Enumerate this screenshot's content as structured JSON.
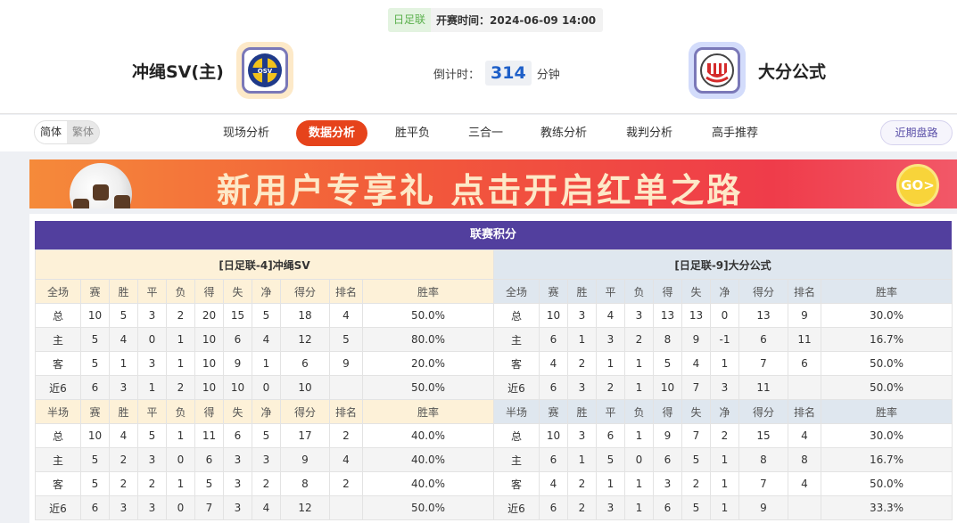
{
  "match": {
    "league": "日足联",
    "kickoff": "开赛时间：2024-06-09 14:00",
    "countdown_label": "倒计时：",
    "countdown_value": "314",
    "countdown_unit": "分钟"
  },
  "home": {
    "name": "冲绳SV(主)",
    "logo_text": "OSV"
  },
  "away": {
    "name": "大分公式"
  },
  "nav": {
    "lang": [
      "简体",
      "繁体"
    ],
    "tabs": [
      "现场分析",
      "数据分析",
      "胜平负",
      "三合一",
      "教练分析",
      "裁判分析",
      "高手推荐"
    ],
    "active_tab": "数据分析",
    "recent": "近期盘路"
  },
  "banner": {
    "text": "新用户专享礼  点击开启红单之路",
    "go": "GO>"
  },
  "colors": {
    "accent": "#e6431b",
    "title_bar": "#523f9e",
    "home_row": "#e00000",
    "away_row": "#1a33cc"
  },
  "standings": {
    "title": "联赛积分",
    "columns_full": [
      "全场",
      "赛",
      "胜",
      "平",
      "负",
      "得",
      "失",
      "净",
      "得分",
      "排名",
      "胜率"
    ],
    "columns_half": [
      "半场",
      "赛",
      "胜",
      "平",
      "负",
      "得",
      "失",
      "净",
      "得分",
      "排名",
      "胜率"
    ],
    "home": {
      "header": "[日足联-4]冲绳SV",
      "full": [
        [
          "总",
          "10",
          "5",
          "3",
          "2",
          "20",
          "15",
          "5",
          "18",
          "4",
          "50.0%"
        ],
        [
          "主",
          "5",
          "4",
          "0",
          "1",
          "10",
          "6",
          "4",
          "12",
          "5",
          "80.0%"
        ],
        [
          "客",
          "5",
          "1",
          "3",
          "1",
          "10",
          "9",
          "1",
          "6",
          "9",
          "20.0%"
        ],
        [
          "近6",
          "6",
          "3",
          "1",
          "2",
          "10",
          "10",
          "0",
          "10",
          "",
          "50.0%"
        ]
      ],
      "half": [
        [
          "总",
          "10",
          "4",
          "5",
          "1",
          "11",
          "6",
          "5",
          "17",
          "2",
          "40.0%"
        ],
        [
          "主",
          "5",
          "2",
          "3",
          "0",
          "6",
          "3",
          "3",
          "9",
          "4",
          "40.0%"
        ],
        [
          "客",
          "5",
          "2",
          "2",
          "1",
          "5",
          "3",
          "2",
          "8",
          "2",
          "40.0%"
        ],
        [
          "近6",
          "6",
          "3",
          "3",
          "0",
          "7",
          "3",
          "4",
          "12",
          "",
          "50.0%"
        ]
      ]
    },
    "away": {
      "header": "[日足联-9]大分公式",
      "full": [
        [
          "总",
          "10",
          "3",
          "4",
          "3",
          "13",
          "13",
          "0",
          "13",
          "9",
          "30.0%"
        ],
        [
          "主",
          "6",
          "1",
          "3",
          "2",
          "8",
          "9",
          "-1",
          "6",
          "11",
          "16.7%"
        ],
        [
          "客",
          "4",
          "2",
          "1",
          "1",
          "5",
          "4",
          "1",
          "7",
          "6",
          "50.0%"
        ],
        [
          "近6",
          "6",
          "3",
          "2",
          "1",
          "10",
          "7",
          "3",
          "11",
          "",
          "50.0%"
        ]
      ],
      "half": [
        [
          "总",
          "10",
          "3",
          "6",
          "1",
          "9",
          "7",
          "2",
          "15",
          "4",
          "30.0%"
        ],
        [
          "主",
          "6",
          "1",
          "5",
          "0",
          "6",
          "5",
          "1",
          "8",
          "8",
          "16.7%"
        ],
        [
          "客",
          "4",
          "2",
          "1",
          "1",
          "3",
          "2",
          "1",
          "7",
          "4",
          "50.0%"
        ],
        [
          "近6",
          "6",
          "2",
          "3",
          "1",
          "6",
          "5",
          "1",
          "9",
          "",
          "33.3%"
        ]
      ]
    }
  }
}
